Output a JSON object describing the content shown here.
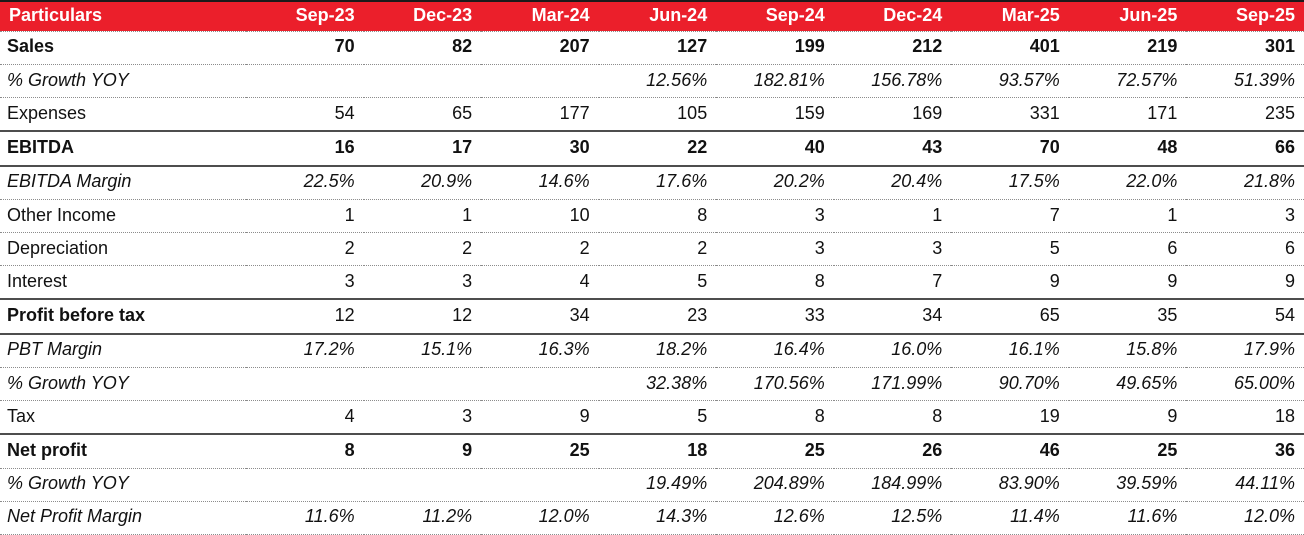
{
  "colors": {
    "header_bg": "#EB1F2B",
    "header_text": "#FFFFFF",
    "body_text": "#111111",
    "dotted_line": "#8C8C8C",
    "solid_line": "#4D4D4D",
    "top_border": "#1A1A1A"
  },
  "table": {
    "columns": [
      "Particulars",
      "Sep-23",
      "Dec-23",
      "Mar-24",
      "Jun-24",
      "Sep-24",
      "Dec-24",
      "Mar-25",
      "Jun-25",
      "Sep-25"
    ],
    "rows": [
      {
        "label": "Sales",
        "label_style": "bold",
        "value_style": "bold",
        "border_bottom": "dotted",
        "values": [
          "70",
          "82",
          "207",
          "127",
          "199",
          "212",
          "401",
          "219",
          "301"
        ]
      },
      {
        "label": "% Growth YOY",
        "label_style": "italic",
        "value_style": "italic",
        "border_bottom": "dotted",
        "values": [
          "",
          "",
          "",
          "12.56%",
          "182.81%",
          "156.78%",
          "93.57%",
          "72.57%",
          "51.39%"
        ]
      },
      {
        "label": "Expenses",
        "label_style": "regular",
        "value_style": "regular",
        "border_bottom": "solid",
        "values": [
          "54",
          "65",
          "177",
          "105",
          "159",
          "169",
          "331",
          "171",
          "235"
        ]
      },
      {
        "label": "EBITDA",
        "label_style": "bold",
        "value_style": "bold",
        "border_bottom": "solid",
        "values": [
          "16",
          "17",
          "30",
          "22",
          "40",
          "43",
          "70",
          "48",
          "66"
        ]
      },
      {
        "label": "EBITDA Margin",
        "label_style": "italic",
        "value_style": "italic",
        "border_bottom": "dotted",
        "values": [
          "22.5%",
          "20.9%",
          "14.6%",
          "17.6%",
          "20.2%",
          "20.4%",
          "17.5%",
          "22.0%",
          "21.8%"
        ]
      },
      {
        "label": "Other Income",
        "label_style": "regular",
        "value_style": "regular",
        "border_bottom": "dotted",
        "values": [
          "1",
          "1",
          "10",
          "8",
          "3",
          "1",
          "7",
          "1",
          "3"
        ]
      },
      {
        "label": "Depreciation",
        "label_style": "regular",
        "value_style": "regular",
        "border_bottom": "dotted",
        "values": [
          "2",
          "2",
          "2",
          "2",
          "3",
          "3",
          "5",
          "6",
          "6"
        ]
      },
      {
        "label": "Interest",
        "label_style": "regular",
        "value_style": "regular",
        "border_bottom": "solid",
        "values": [
          "3",
          "3",
          "4",
          "5",
          "8",
          "7",
          "9",
          "9",
          "9"
        ]
      },
      {
        "label": "Profit before tax",
        "label_style": "bold",
        "value_style": "regular",
        "border_bottom": "solid",
        "values": [
          "12",
          "12",
          "34",
          "23",
          "33",
          "34",
          "65",
          "35",
          "54"
        ]
      },
      {
        "label": "PBT Margin",
        "label_style": "italic",
        "value_style": "italic",
        "border_bottom": "dotted",
        "values": [
          "17.2%",
          "15.1%",
          "16.3%",
          "18.2%",
          "16.4%",
          "16.0%",
          "16.1%",
          "15.8%",
          "17.9%"
        ]
      },
      {
        "label": "% Growth YOY",
        "label_style": "italic",
        "value_style": "italic",
        "border_bottom": "dotted",
        "values": [
          "",
          "",
          "",
          "32.38%",
          "170.56%",
          "171.99%",
          "90.70%",
          "49.65%",
          "65.00%"
        ]
      },
      {
        "label": "Tax",
        "label_style": "regular",
        "value_style": "regular",
        "border_bottom": "solid",
        "values": [
          "4",
          "3",
          "9",
          "5",
          "8",
          "8",
          "19",
          "9",
          "18"
        ]
      },
      {
        "label": "Net profit",
        "label_style": "bold",
        "value_style": "bold",
        "border_bottom": "dotted",
        "values": [
          "8",
          "9",
          "25",
          "18",
          "25",
          "26",
          "46",
          "25",
          "36"
        ]
      },
      {
        "label": "% Growth YOY",
        "label_style": "italic",
        "value_style": "italic",
        "border_bottom": "dotted",
        "values": [
          "",
          "",
          "",
          "19.49%",
          "204.89%",
          "184.99%",
          "83.90%",
          "39.59%",
          "44.11%"
        ]
      },
      {
        "label": "Net Profit Margin",
        "label_style": "italic",
        "value_style": "italic",
        "border_bottom": "dotted",
        "values": [
          "11.6%",
          "11.2%",
          "12.0%",
          "14.3%",
          "12.6%",
          "12.5%",
          "11.4%",
          "11.6%",
          "12.0%"
        ]
      }
    ]
  }
}
